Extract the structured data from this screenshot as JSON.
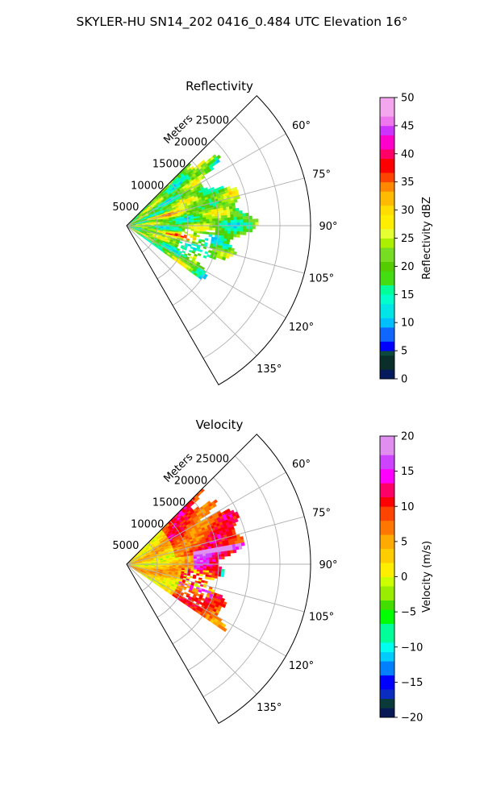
{
  "suptitle": "SKYLER-HU  SN14_202  0416_0.484 UTC Elevation 16°",
  "colors": {
    "axis": "#000000",
    "grid": "#b0b0b0",
    "background": "#ffffff"
  },
  "chart_data": [
    {
      "type": "heatmap",
      "subtype": "polar sector (radar PPI)",
      "title": "Reflectivity",
      "radius_label": "Meters",
      "radius_ticks": [
        "5000",
        "10000",
        "15000",
        "20000",
        "25000"
      ],
      "radius_range": [
        0,
        30000
      ],
      "azimuth_range_deg": [
        45,
        150
      ],
      "azimuth_ticks": [
        "60°",
        "75°",
        "90°",
        "105°",
        "120°",
        "135°"
      ],
      "grid": true,
      "echo_extent_m": 20000,
      "colorbar": {
        "label": "Reflectivity dBZ",
        "range": [
          0,
          50
        ],
        "ticks": [
          "0",
          "5",
          "10",
          "15",
          "20",
          "25",
          "30",
          "35",
          "40",
          "45",
          "50"
        ],
        "colormap": "pyart NWSRef-like"
      }
    },
    {
      "type": "heatmap",
      "subtype": "polar sector (radar PPI)",
      "title": "Velocity",
      "radius_label": "Meters",
      "radius_ticks": [
        "5000",
        "10000",
        "15000",
        "20000",
        "25000"
      ],
      "radius_range": [
        0,
        30000
      ],
      "azimuth_range_deg": [
        45,
        150
      ],
      "azimuth_ticks": [
        "60°",
        "75°",
        "90°",
        "105°",
        "120°",
        "135°"
      ],
      "grid": true,
      "echo_extent_m": 20000,
      "colorbar": {
        "label": "Velocity (m/s)",
        "range": [
          -20,
          20
        ],
        "ticks": [
          "−20",
          "−15",
          "−10",
          "−5",
          "0",
          "5",
          "10",
          "15",
          "20"
        ],
        "colormap": "pyart NWSVel-like"
      }
    }
  ]
}
